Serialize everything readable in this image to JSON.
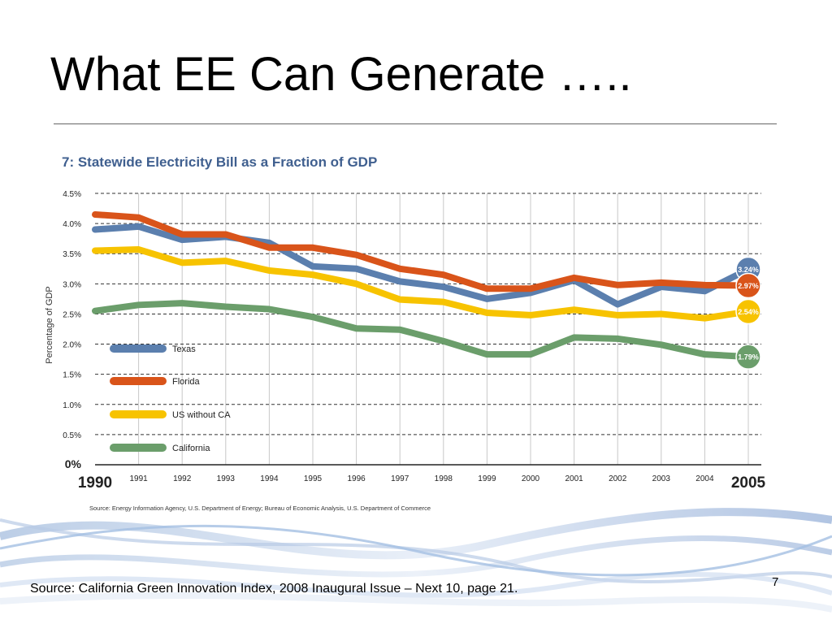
{
  "slide": {
    "title": "What EE Can Generate …..",
    "footer_source": "Source: California Green Innovation Index, 2008 Inaugural Issue – Next 10, page 21.",
    "page_number": "7"
  },
  "chart_data": {
    "type": "line",
    "title": "7: Statewide Electricity Bill as a Fraction of GDP",
    "ylabel": "Percentage of GDP",
    "xlabel": "",
    "ylim": [
      0,
      4.5
    ],
    "yticks": [
      "0%",
      "0.5%",
      "1.0%",
      "1.5%",
      "2.0%",
      "2.5%",
      "3.0%",
      "3.5%",
      "4.0%",
      "4.5%"
    ],
    "categories": [
      "1990",
      "1991",
      "1992",
      "1993",
      "1994",
      "1995",
      "1996",
      "1997",
      "1998",
      "1999",
      "2000",
      "2001",
      "2002",
      "2003",
      "2004",
      "2005"
    ],
    "grid": "horizontal dashed and vertical solid",
    "legend_position": "left",
    "source": "Source: Energy Information Agency, U.S. Department of Energy; Bureau of Economic Analysis, U.S. Department of Commerce",
    "series": [
      {
        "name": "Texas",
        "color": "#5b7fae",
        "values": [
          3.9,
          3.95,
          3.73,
          3.78,
          3.68,
          3.29,
          3.25,
          3.04,
          2.95,
          2.75,
          2.85,
          3.06,
          2.66,
          2.95,
          2.88,
          3.24
        ],
        "end_label": "3.24%"
      },
      {
        "name": "Florida",
        "color": "#d9541a",
        "values": [
          4.15,
          4.1,
          3.82,
          3.82,
          3.6,
          3.6,
          3.48,
          3.25,
          3.15,
          2.92,
          2.92,
          3.1,
          2.98,
          3.02,
          2.98,
          2.97
        ],
        "end_label": "2.97%"
      },
      {
        "name": "US without CA",
        "color": "#f7c300",
        "values": [
          3.55,
          3.57,
          3.35,
          3.38,
          3.22,
          3.15,
          3.0,
          2.74,
          2.7,
          2.52,
          2.48,
          2.57,
          2.48,
          2.5,
          2.43,
          2.54
        ],
        "end_label": "2.54%"
      },
      {
        "name": "California",
        "color": "#6b9e6b",
        "values": [
          2.55,
          2.65,
          2.68,
          2.62,
          2.58,
          2.45,
          2.26,
          2.24,
          2.05,
          1.83,
          1.83,
          2.11,
          2.09,
          1.99,
          1.83,
          1.79
        ],
        "end_label": "1.79%"
      }
    ]
  }
}
